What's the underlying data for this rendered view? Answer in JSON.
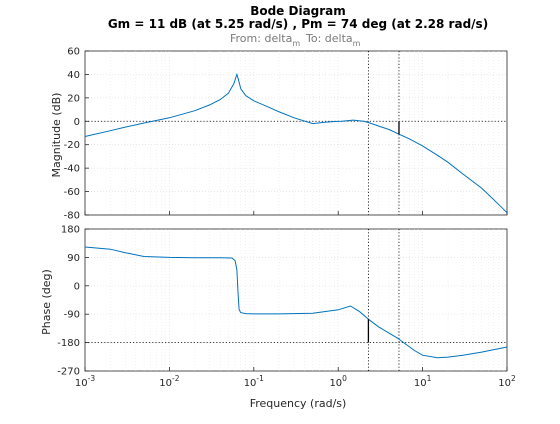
{
  "chart_data": {
    "type": "line",
    "title": "Bode Diagram",
    "subtitle_line": "Gm = 11 dB (at 5.25 rad/s) ,  Pm = 74 deg (at 2.28 rad/s)",
    "io_from_label": "From: delta",
    "io_from_sub": "m",
    "io_to_label": "To: delta",
    "io_to_sub": "m",
    "xlabel": "Frequency  (rad/s)",
    "x_scale": "log",
    "xlim": [
      0.001,
      100
    ],
    "x_ticks": [
      {
        "base": "10",
        "exp": "-3"
      },
      {
        "base": "10",
        "exp": "-2"
      },
      {
        "base": "10",
        "exp": "-1"
      },
      {
        "base": "10",
        "exp": "0"
      },
      {
        "base": "10",
        "exp": "1"
      },
      {
        "base": "10",
        "exp": "2"
      }
    ],
    "grid": true,
    "gain_margin_db": 11,
    "gain_margin_freq": 5.25,
    "phase_margin_deg": 74,
    "phase_margin_freq": 2.28,
    "magnitude": {
      "ylabel": "Magnitude  (dB)",
      "ylim": [
        -80,
        60
      ],
      "y_ticks": [
        "60",
        "40",
        "20",
        "0",
        "-20",
        "-40",
        "-60",
        "-80"
      ],
      "reference_level": 0,
      "series": [
        {
          "x": [
            0.001,
            0.002,
            0.003,
            0.005,
            0.01,
            0.02,
            0.03,
            0.04,
            0.05,
            0.058,
            0.063,
            0.066,
            0.07,
            0.08,
            0.1,
            0.15,
            0.2,
            0.3,
            0.5,
            0.7,
            0.9,
            1.1,
            1.5,
            2.0,
            2.28,
            3,
            4,
            5.25,
            7,
            10,
            15,
            20,
            30,
            50,
            70,
            100
          ],
          "y": [
            -13,
            -8,
            -5,
            -1.5,
            3,
            9,
            14,
            18.5,
            24,
            32,
            40,
            35,
            28,
            22,
            17.5,
            12,
            8,
            3,
            -2,
            -0.8,
            -0.2,
            0.1,
            1,
            0,
            -1,
            -4,
            -7,
            -11,
            -15,
            -21,
            -29,
            -35,
            -45,
            -57,
            -67,
            -78
          ]
        }
      ]
    },
    "phase": {
      "ylabel": "Phase  (deg)",
      "ylim": [
        -270,
        180
      ],
      "y_ticks": [
        "180",
        "90",
        "0",
        "-90",
        "-180",
        "-270"
      ],
      "reference_level": -180,
      "series": [
        {
          "x": [
            0.001,
            0.002,
            0.003,
            0.005,
            0.01,
            0.02,
            0.04,
            0.055,
            0.06,
            0.063,
            0.065,
            0.067,
            0.07,
            0.08,
            0.1,
            0.2,
            0.5,
            1,
            1.4,
            1.8,
            2.28,
            3,
            5,
            8,
            10,
            15,
            20,
            30,
            50,
            100
          ],
          "y": [
            123,
            116,
            105,
            93,
            90,
            89,
            89,
            88,
            80,
            50,
            -20,
            -75,
            -85,
            -88,
            -89,
            -89,
            -87,
            -76,
            -64,
            -82,
            -106,
            -130,
            -165,
            -205,
            -220,
            -228,
            -226,
            -220,
            -210,
            -194
          ]
        }
      ]
    }
  }
}
